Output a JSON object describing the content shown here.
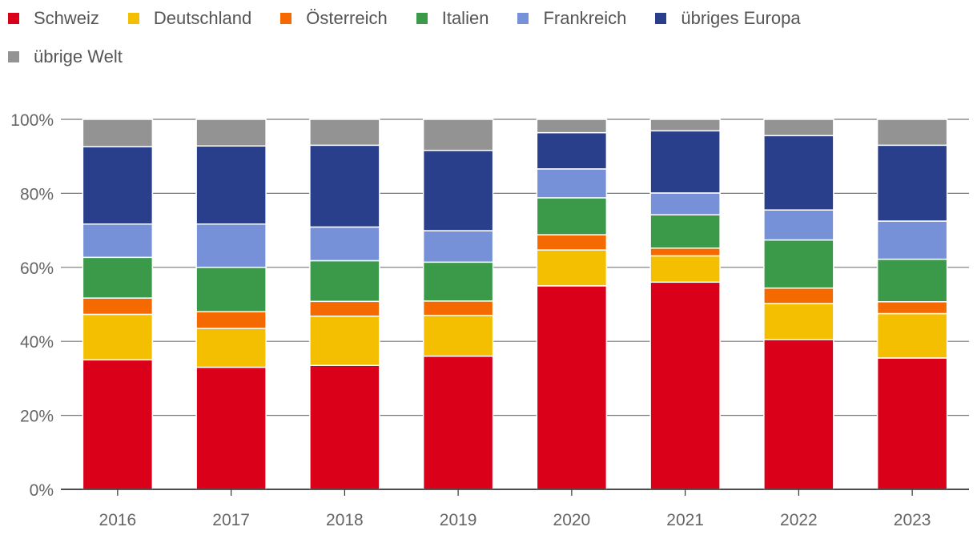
{
  "chart_data": {
    "type": "bar",
    "stacked": true,
    "title": "",
    "xlabel": "",
    "ylabel": "",
    "ylim": [
      0,
      100
    ],
    "yticks": [
      "0%",
      "20%",
      "40%",
      "60%",
      "80%",
      "100%"
    ],
    "legend_position": "top-left",
    "grid": true,
    "categories": [
      "2016",
      "2017",
      "2018",
      "2019",
      "2020",
      "2021",
      "2022",
      "2023"
    ],
    "series": [
      {
        "name": "Schweiz",
        "color": "#da001a",
        "values": [
          35,
          33,
          33.5,
          36,
          55,
          56,
          40.5,
          35.5
        ]
      },
      {
        "name": "Deutschland",
        "color": "#f4bf00",
        "values": [
          12.3,
          10.5,
          13.3,
          11,
          9.7,
          7.1,
          9.7,
          12
        ]
      },
      {
        "name": "Österreich",
        "color": "#f46a00",
        "values": [
          4.4,
          4.5,
          4,
          3.9,
          4.1,
          2.1,
          4.2,
          3.2
        ]
      },
      {
        "name": "Italien",
        "color": "#3a9a4a",
        "values": [
          11,
          12,
          11,
          10.5,
          10,
          9,
          13,
          11.5
        ]
      },
      {
        "name": "Frankreich",
        "color": "#7691d8",
        "values": [
          9,
          11.7,
          9.1,
          8.5,
          7.8,
          5.9,
          8.1,
          10.3
        ]
      },
      {
        "name": "übriges Europa",
        "color": "#2a3f8b",
        "values": [
          20.9,
          21.1,
          22.1,
          21.7,
          9.8,
          16.8,
          20.1,
          20.5
        ]
      },
      {
        "name": "übrige Welt",
        "color": "#939393",
        "values": [
          7.4,
          7.2,
          7,
          8.4,
          3.6,
          3.1,
          4.4,
          7
        ]
      }
    ]
  }
}
